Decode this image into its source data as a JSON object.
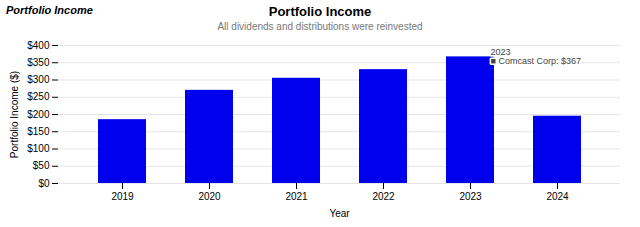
{
  "chart_data": {
    "type": "bar",
    "title": "Portfolio Income",
    "subtitle": "All dividends and distributions were reinvested",
    "xlabel": "Year",
    "ylabel": "Portfolio Income ($)",
    "categories": [
      "2019",
      "2020",
      "2021",
      "2022",
      "2023",
      "2024"
    ],
    "values": [
      185,
      270,
      305,
      330,
      367,
      195
    ],
    "color": "#0000EE",
    "ylim": [
      0,
      400
    ],
    "yticks": [
      {
        "value": 0,
        "label": "$0"
      },
      {
        "value": 50,
        "label": "$50"
      },
      {
        "value": 100,
        "label": "$100"
      },
      {
        "value": 150,
        "label": "$150"
      },
      {
        "value": 200,
        "label": "$200"
      },
      {
        "value": 250,
        "label": "$250"
      },
      {
        "value": 300,
        "label": "$300"
      },
      {
        "value": 350,
        "label": "$350"
      },
      {
        "value": 400,
        "label": "$400"
      }
    ],
    "grid": true,
    "annotations": [
      {
        "text": "Portfolio Income"
      },
      {
        "text": "2023\n■ Comcast Corp: $367",
        "x": "2023",
        "y": 367
      }
    ]
  }
}
